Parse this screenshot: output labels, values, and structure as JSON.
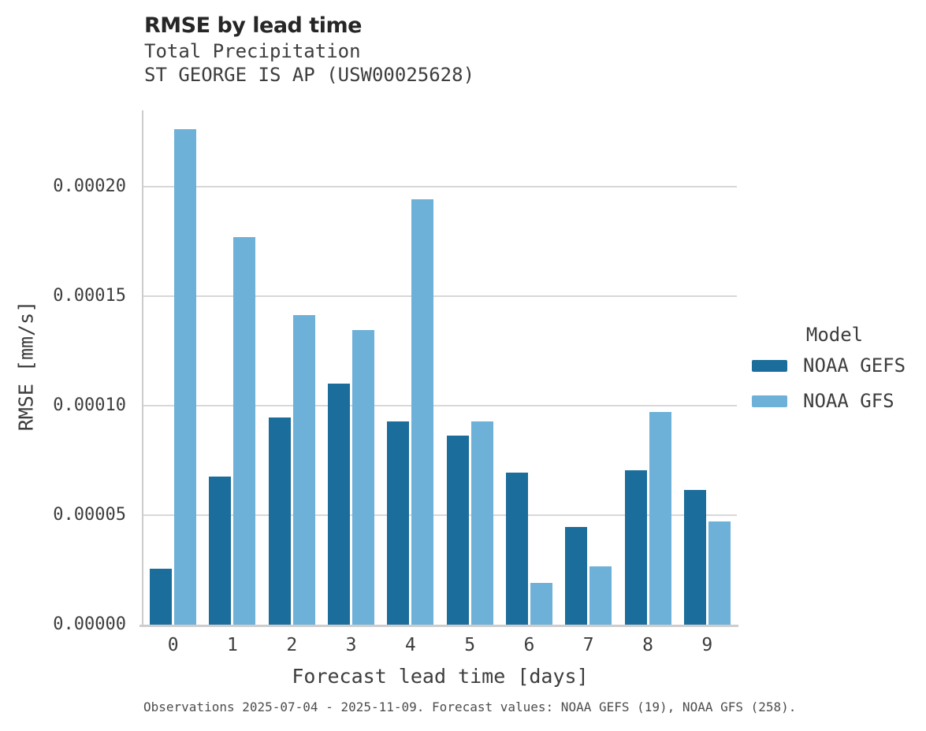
{
  "header": {
    "title": "RMSE by lead time",
    "subtitle1": "Total Precipitation",
    "subtitle2": "ST GEORGE IS AP (USW00025628)"
  },
  "chart_data": {
    "type": "bar",
    "title": "RMSE by lead time",
    "subtitle": "Total Precipitation",
    "station": "ST GEORGE IS AP (USW00025628)",
    "categories": [
      0,
      1,
      2,
      3,
      4,
      5,
      6,
      7,
      8,
      9
    ],
    "series": [
      {
        "name": "NOAA GEFS",
        "color": "#1b6e9c",
        "values": [
          2.55e-05,
          6.75e-05,
          9.45e-05,
          0.00011,
          9.3e-05,
          8.65e-05,
          6.95e-05,
          4.45e-05,
          7.05e-05,
          6.15e-05
        ]
      },
      {
        "name": "NOAA GFS",
        "color": "#6db0d8",
        "values": [
          0.0002265,
          0.000177,
          0.0001415,
          0.0001345,
          0.0001945,
          9.3e-05,
          1.9e-05,
          2.65e-05,
          9.7e-05,
          4.7e-05
        ]
      }
    ],
    "xlabel": "Forecast lead time [days]",
    "ylabel": "RMSE [mm/s]",
    "ylim": [
      0,
      0.000235
    ],
    "yticks": [
      0,
      5e-05,
      0.0001,
      0.00015,
      0.0002
    ],
    "ytick_labels": [
      "0.00000",
      "0.00005",
      "0.00010",
      "0.00015",
      "0.00020"
    ],
    "grid": "horizontal",
    "legend_title": "Model",
    "legend_position": "right"
  },
  "legend": {
    "title": "Model",
    "items": [
      {
        "label": "NOAA GEFS"
      },
      {
        "label": "NOAA GFS"
      }
    ]
  },
  "caption": "Observations 2025-07-04 - 2025-11-09. Forecast values: NOAA GEFS (19), NOAA GFS (258)."
}
